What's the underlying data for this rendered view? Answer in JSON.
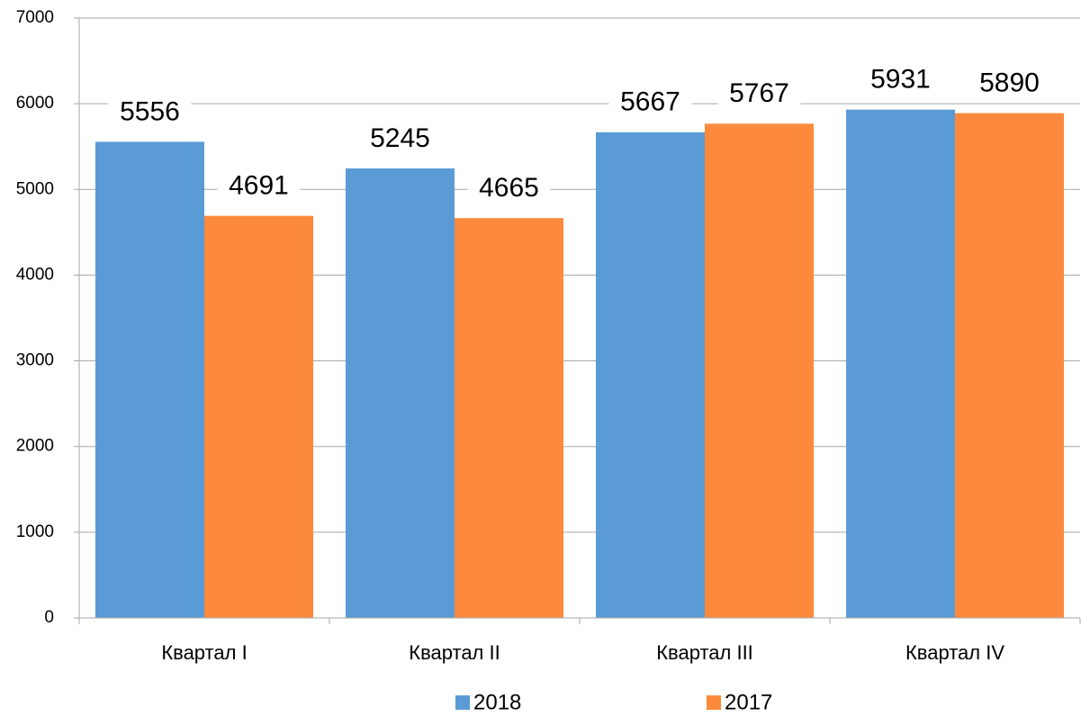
{
  "chart_data": {
    "type": "bar",
    "categories": [
      "Квартал I",
      "Квартал II",
      "Квартал III",
      "Квартал IV"
    ],
    "series": [
      {
        "name": "2018",
        "color": "#5b9bd5",
        "values": [
          5556,
          5245,
          5667,
          5931
        ]
      },
      {
        "name": "2017",
        "color": "#fd8a3c",
        "values": [
          4691,
          4665,
          5767,
          5890
        ]
      }
    ],
    "ylim": [
      0,
      7000
    ],
    "yticks": [
      0,
      1000,
      2000,
      3000,
      4000,
      5000,
      6000,
      7000
    ],
    "grid": true,
    "legend": "bottom"
  }
}
